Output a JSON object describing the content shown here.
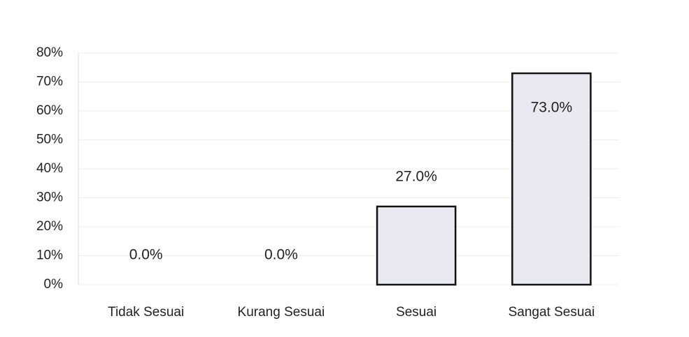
{
  "chart_data": {
    "type": "bar",
    "categories": [
      "Tidak Sesuai",
      "Kurang Sesuai",
      "Sesuai",
      "Sangat Sesuai"
    ],
    "values": [
      0,
      0,
      27,
      73
    ],
    "value_labels": [
      "0.0%",
      "0.0%",
      "27.0%",
      "73.0%"
    ],
    "color": "#e9eaf1",
    "ylim": [
      0,
      80
    ],
    "yticks": [
      {
        "value": 0,
        "label": "0%"
      },
      {
        "value": 10,
        "label": "10%"
      },
      {
        "value": 20,
        "label": "20%"
      },
      {
        "value": 30,
        "label": "30%"
      },
      {
        "value": 40,
        "label": "40%"
      },
      {
        "value": 50,
        "label": "50%"
      },
      {
        "value": 60,
        "label": "60%"
      },
      {
        "value": 70,
        "label": "70%"
      },
      {
        "value": 80,
        "label": "80%"
      }
    ],
    "grid": true
  }
}
